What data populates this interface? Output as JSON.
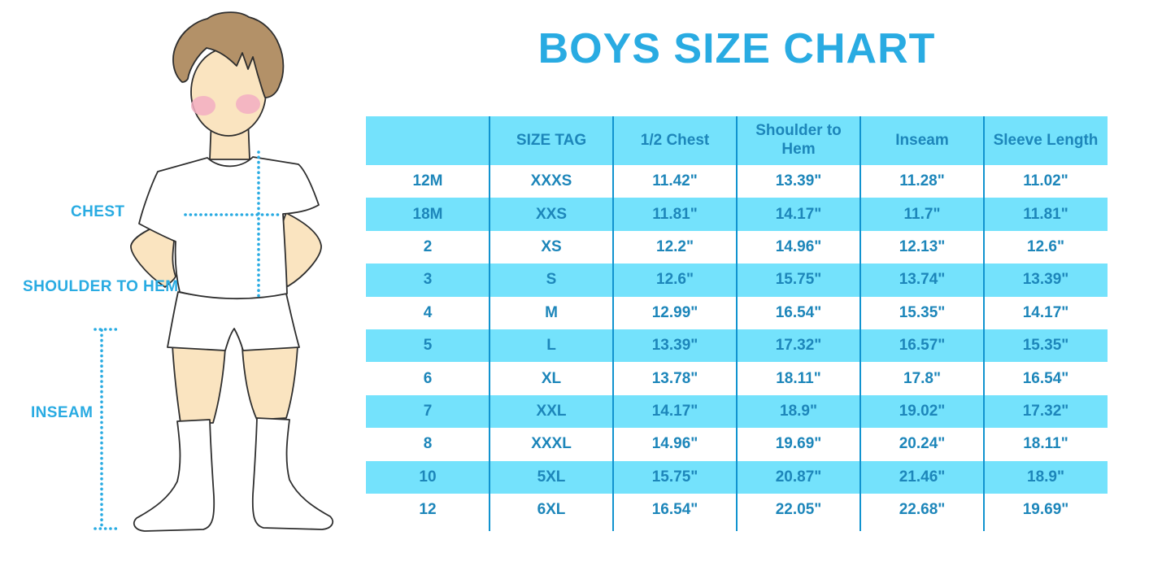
{
  "title": "BOYS SIZE CHART",
  "figure": {
    "labels": {
      "chest": "CHEST",
      "shoulder_to_hem": "SHOULDER TO HEM",
      "inseam": "INSEAM"
    }
  },
  "chart_data": {
    "type": "table",
    "title": "BOYS SIZE CHART",
    "columns": [
      "",
      "SIZE TAG",
      "1/2 Chest",
      "Shoulder to Hem",
      "Inseam",
      "Sleeve Length"
    ],
    "rows": [
      [
        "12M",
        "XXXS",
        "11.42\"",
        "13.39\"",
        "11.28\"",
        "11.02\""
      ],
      [
        "18M",
        "XXS",
        "11.81\"",
        "14.17\"",
        "11.7\"",
        "11.81\""
      ],
      [
        "2",
        "XS",
        "12.2\"",
        "14.96\"",
        "12.13\"",
        "12.6\""
      ],
      [
        "3",
        "S",
        "12.6\"",
        "15.75\"",
        "13.74\"",
        "13.39\""
      ],
      [
        "4",
        "M",
        "12.99\"",
        "16.54\"",
        "15.35\"",
        "14.17\""
      ],
      [
        "5",
        "L",
        "13.39\"",
        "17.32\"",
        "16.57\"",
        "15.35\""
      ],
      [
        "6",
        "XL",
        "13.78\"",
        "18.11\"",
        "17.8\"",
        "16.54\""
      ],
      [
        "7",
        "XXL",
        "14.17\"",
        "18.9\"",
        "19.02\"",
        "17.32\""
      ],
      [
        "8",
        "XXXL",
        "14.96\"",
        "19.69\"",
        "20.24\"",
        "18.11\""
      ],
      [
        "10",
        "5XL",
        "15.75\"",
        "20.87\"",
        "21.46\"",
        "18.9\""
      ],
      [
        "12",
        "6XL",
        "16.54\"",
        "22.05\"",
        "22.68\"",
        "19.69\""
      ]
    ],
    "units": "inches",
    "striping": "header and alternate rows highlighted cyan"
  },
  "colors": {
    "title_blue": "#29ABE2",
    "label_blue": "#29ABE2",
    "table_text_blue": "#1D86BA",
    "row_stripe_cyan": "#74E2FC",
    "column_line_blue": "#1193CF",
    "measure_line_blue": "#29ABE2",
    "skin": "#FAE4C0",
    "hair_brown": "#B39168",
    "blush_pink": "#F2AEC2",
    "background": "#FFFFFF"
  }
}
